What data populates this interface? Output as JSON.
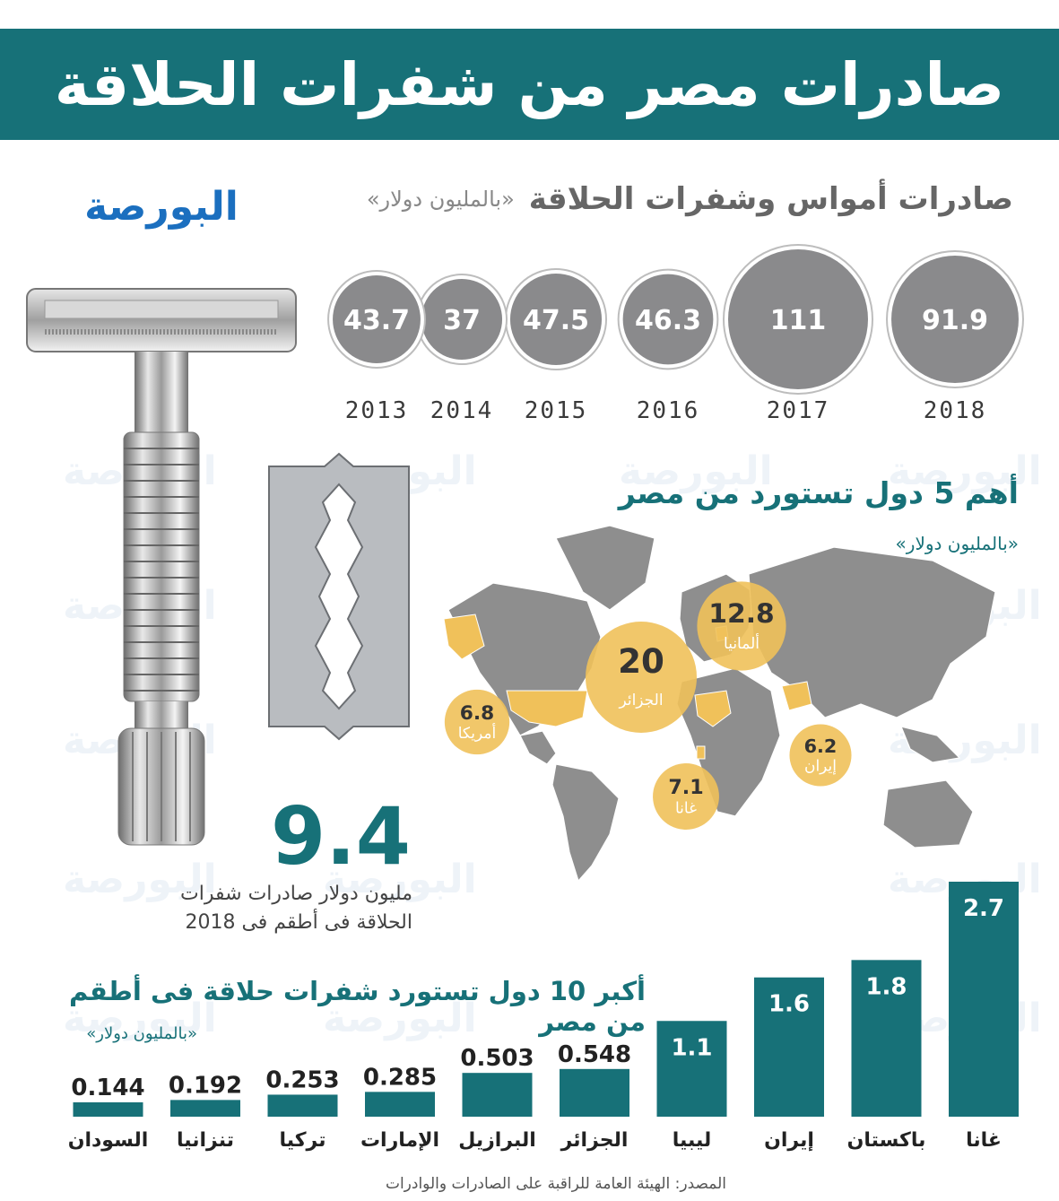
{
  "title": "صادرات مصر من شفرات الحلاقة",
  "logo": {
    "text": "البورصة"
  },
  "accent_color": "#177178",
  "highlight_color": "#f0c15a",
  "gray_color": "#8a8a8c",
  "yearly_section": {
    "title": "صادرات أمواس وشفرات الحلاقة",
    "unit": "«بالمليون دولار»"
  },
  "top5_section": {
    "title": "أهم 5 دول تستورد من مصر",
    "unit": "«بالمليون دولار»"
  },
  "highlight": {
    "value": "9.4",
    "caption_line1": "مليون دولار صادرات شفرات",
    "caption_line2": "الحلاقة فى أطقم فى 2018"
  },
  "top10_section": {
    "title": "أكبر 10 دول تستورد شفرات حلاقة فى أطقم من مصر",
    "unit": "«بالمليون دولار»"
  },
  "source": "المصدر: الهيئة العامة للراقبة على الصادرات والوادرات",
  "chart_data": [
    {
      "type": "bubble",
      "title": "صادرات أمواس وشفرات الحلاقة",
      "unit": "«بالمليون دولار»",
      "categories": [
        "2018",
        "2017",
        "2016",
        "2015",
        "2014",
        "2013"
      ],
      "values": [
        91.9,
        111,
        46.3,
        47.5,
        37,
        43.7
      ],
      "labels": [
        "91.9",
        "111",
        "46.3",
        "47.5",
        "37",
        "43.7"
      ]
    },
    {
      "type": "map-bubble",
      "title": "أهم 5 دول تستورد من مصر",
      "unit": "«بالمليون دولار»",
      "categories": [
        "الجزائر",
        "ألمانيا",
        "غانا",
        "أمريكا",
        "إيران"
      ],
      "values": [
        20,
        12.8,
        7.1,
        6.8,
        6.2
      ],
      "labels": [
        "20",
        "12.8",
        "7.1",
        "6.8",
        "6.2"
      ]
    },
    {
      "type": "bar",
      "title": "أكبر 10 دول تستورد شفرات حلاقة فى أطقم من مصر",
      "unit": "«بالمليون دولار»",
      "categories": [
        "غانا",
        "باكستان",
        "إيران",
        "ليبيا",
        "الجزائر",
        "البرازيل",
        "الإمارات",
        "تركيا",
        "تنزانيا",
        "السودان"
      ],
      "values": [
        2.7,
        1.8,
        1.6,
        1.1,
        0.548,
        0.503,
        0.285,
        0.253,
        0.192,
        0.144
      ],
      "labels": [
        "2.7",
        "1.8",
        "1.6",
        "1.1",
        "0.548",
        "0.503",
        "0.285",
        "0.253",
        "0.192",
        "0.144"
      ]
    }
  ]
}
